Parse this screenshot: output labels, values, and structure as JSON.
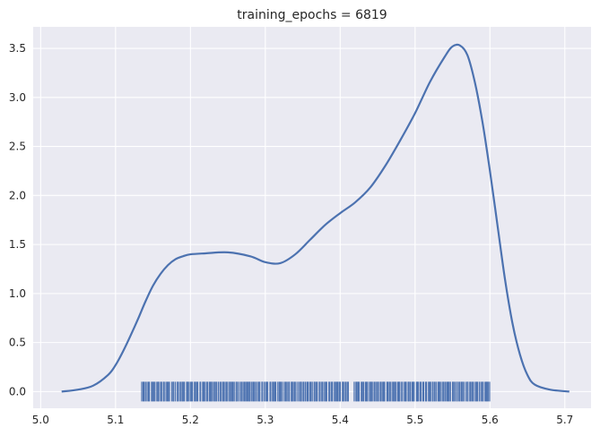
{
  "chart_data": {
    "type": "kde",
    "title": "training_epochs = 6819",
    "xlabel": "",
    "ylabel": "",
    "xlim": [
      4.99,
      5.735
    ],
    "ylim": [
      -0.17,
      3.72
    ],
    "x_ticks": [
      "5.0",
      "5.1",
      "5.2",
      "5.3",
      "5.4",
      "5.5",
      "5.6",
      "5.7"
    ],
    "y_ticks": [
      "0.0",
      "0.5",
      "1.0",
      "1.5",
      "2.0",
      "2.5",
      "3.0",
      "3.5"
    ],
    "grid": true,
    "background": "#eaeaf2",
    "line_color": "#4c72b0",
    "density_curve": {
      "x": [
        5.028,
        5.05,
        5.07,
        5.09,
        5.1,
        5.11,
        5.12,
        5.13,
        5.14,
        5.15,
        5.16,
        5.17,
        5.18,
        5.19,
        5.2,
        5.22,
        5.25,
        5.28,
        5.3,
        5.32,
        5.34,
        5.36,
        5.38,
        5.4,
        5.42,
        5.44,
        5.46,
        5.48,
        5.5,
        5.52,
        5.54,
        5.55,
        5.56,
        5.57,
        5.58,
        5.59,
        5.6,
        5.61,
        5.62,
        5.63,
        5.64,
        5.65,
        5.66,
        5.68,
        5.706
      ],
      "y": [
        0.0,
        0.02,
        0.06,
        0.17,
        0.27,
        0.41,
        0.57,
        0.74,
        0.92,
        1.08,
        1.2,
        1.29,
        1.35,
        1.38,
        1.4,
        1.41,
        1.42,
        1.38,
        1.32,
        1.31,
        1.4,
        1.55,
        1.7,
        1.82,
        1.93,
        2.08,
        2.3,
        2.56,
        2.84,
        3.16,
        3.42,
        3.52,
        3.53,
        3.43,
        3.15,
        2.75,
        2.25,
        1.7,
        1.15,
        0.7,
        0.38,
        0.17,
        0.07,
        0.02,
        0.0
      ]
    },
    "rug": {
      "x_range": [
        5.135,
        5.6
      ],
      "count": 260,
      "gap": [
        5.413,
        5.418
      ]
    }
  }
}
